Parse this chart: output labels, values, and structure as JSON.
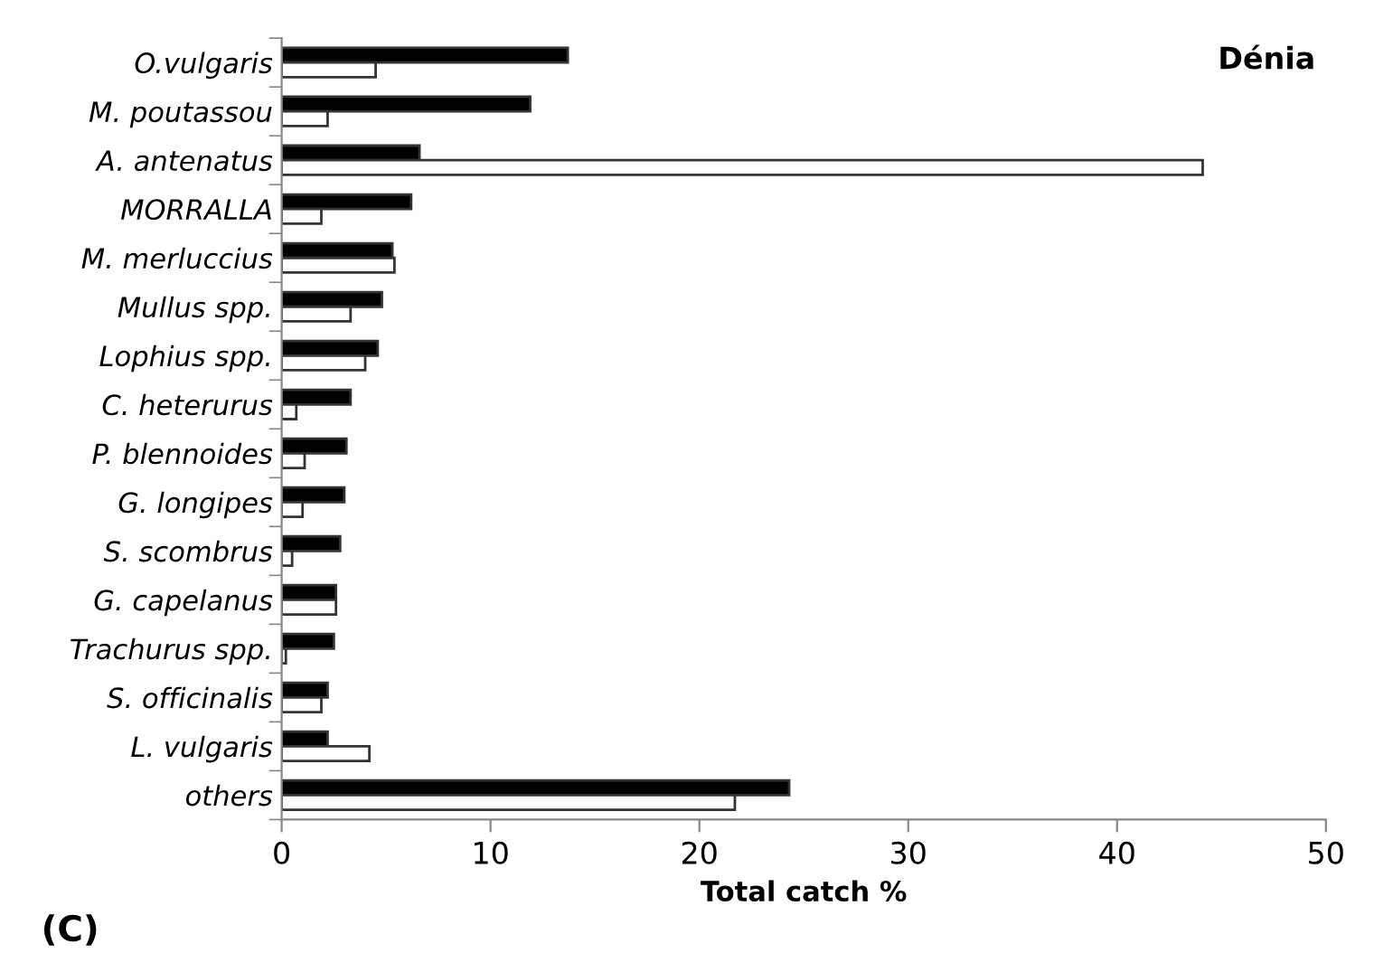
{
  "chart_data": {
    "type": "bar",
    "orientation": "horizontal",
    "title": "Dénia",
    "xlabel": "Total catch %",
    "categories": [
      "O.vulgaris",
      "M. poutassou",
      "A. antenatus",
      "MORRALLA",
      "M. merluccius",
      "Mullus spp.",
      "Lophius spp.",
      "C. heterurus",
      "P. blennoides",
      "G. longipes",
      "S. scombrus",
      "G. capelanus",
      "Trachurus spp.",
      "S. officinalis",
      "L. vulgaris",
      "others"
    ],
    "series": [
      {
        "color": "#000000",
        "values": [
          13.7,
          11.9,
          6.6,
          6.2,
          5.3,
          4.8,
          4.6,
          3.3,
          3.1,
          3.0,
          2.8,
          2.6,
          2.5,
          2.2,
          2.2,
          24.3
        ]
      },
      {
        "color": "#ffffff",
        "values": [
          4.5,
          2.2,
          44.1,
          1.9,
          5.4,
          3.3,
          4.0,
          0.7,
          1.1,
          1.0,
          0.5,
          2.6,
          0.2,
          1.9,
          4.2,
          21.7
        ]
      }
    ],
    "xlim": [
      0,
      50
    ],
    "xticks": [
      0,
      10,
      20,
      30,
      40,
      50
    ],
    "grid": false,
    "annotations": [
      "(C)"
    ]
  }
}
